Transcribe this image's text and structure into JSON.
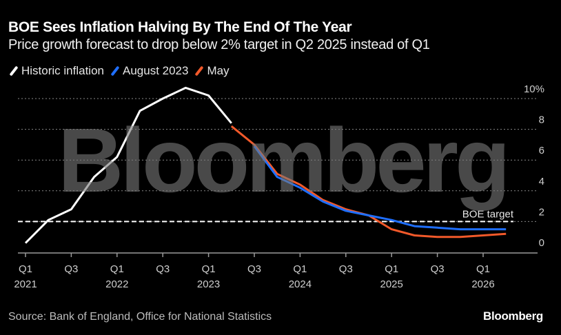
{
  "header": {
    "title": "BOE Sees Inflation Halving By The End Of The Year",
    "subtitle": "Price growth forecast to drop below 2% target in Q2 2025 instead of Q1"
  },
  "footer": {
    "source": "Source: Bank of England, Office for National Statistics",
    "brand": "Bloomberg"
  },
  "watermark": "Bloomberg",
  "colors": {
    "background": "#000000",
    "historic": "#ffffff",
    "august": "#1f6fff",
    "may": "#f2592a",
    "grid": "#8a8a8a",
    "axis": "#9a9a9a"
  },
  "chart_data": {
    "type": "line",
    "title": "BOE Sees Inflation Halving By The End Of The Year",
    "subtitle": "Price growth forecast to drop below 2% target in Q2 2025 instead of Q1",
    "xlabel": "",
    "ylabel": "",
    "ylim": [
      0,
      10
    ],
    "y_ticks": [
      0,
      2,
      4,
      6,
      8,
      10
    ],
    "y_tick_labels": [
      "0",
      "2",
      "4",
      "6",
      "8",
      "10%"
    ],
    "y_axis_side": "right",
    "grid": true,
    "legend_placement": "top-left",
    "x": [
      "Q1 2021",
      "Q2 2021",
      "Q3 2021",
      "Q4 2021",
      "Q1 2022",
      "Q2 2022",
      "Q3 2022",
      "Q4 2022",
      "Q1 2023",
      "Q2 2023",
      "Q3 2023",
      "Q4 2023",
      "Q1 2024",
      "Q2 2024",
      "Q3 2024",
      "Q4 2024",
      "Q1 2025",
      "Q2 2025",
      "Q3 2025",
      "Q4 2025",
      "Q1 2026",
      "Q2 2026"
    ],
    "x_ticks": [
      {
        "index": 0,
        "line1": "Q1",
        "line2": "2021"
      },
      {
        "index": 2,
        "line1": "Q3",
        "line2": ""
      },
      {
        "index": 4,
        "line1": "Q1",
        "line2": "2022"
      },
      {
        "index": 6,
        "line1": "Q3",
        "line2": ""
      },
      {
        "index": 8,
        "line1": "Q1",
        "line2": "2023"
      },
      {
        "index": 10,
        "line1": "Q3",
        "line2": ""
      },
      {
        "index": 12,
        "line1": "Q1",
        "line2": "2024"
      },
      {
        "index": 14,
        "line1": "Q3",
        "line2": ""
      },
      {
        "index": 16,
        "line1": "Q1",
        "line2": "2025"
      },
      {
        "index": 18,
        "line1": "Q3",
        "line2": ""
      },
      {
        "index": 20,
        "line1": "Q1",
        "line2": "2026"
      }
    ],
    "series": [
      {
        "name": "Historic inflation",
        "color": "#ffffff",
        "start_index": 0,
        "values": [
          0.6,
          2.1,
          2.8,
          4.9,
          6.2,
          9.2,
          10.0,
          10.7,
          10.2,
          8.4
        ]
      },
      {
        "name": "May",
        "color": "#f2592a",
        "start_index": 9,
        "values": [
          8.2,
          7.0,
          5.1,
          4.4,
          3.4,
          2.8,
          2.4,
          1.5,
          1.1,
          1.0,
          1.0,
          1.1,
          1.2
        ]
      },
      {
        "name": "August 2023",
        "color": "#1f6fff",
        "start_index": 10,
        "values": [
          6.9,
          4.9,
          4.2,
          3.3,
          2.7,
          2.4,
          2.1,
          1.7,
          1.6,
          1.5,
          1.5,
          1.5
        ]
      }
    ],
    "reference_lines": [
      {
        "label": "BOE target",
        "value": 2,
        "style": "dashed"
      }
    ]
  },
  "legend": [
    {
      "label": "Historic inflation",
      "color": "#ffffff"
    },
    {
      "label": "August 2023",
      "color": "#1f6fff"
    },
    {
      "label": "May",
      "color": "#f2592a"
    }
  ]
}
